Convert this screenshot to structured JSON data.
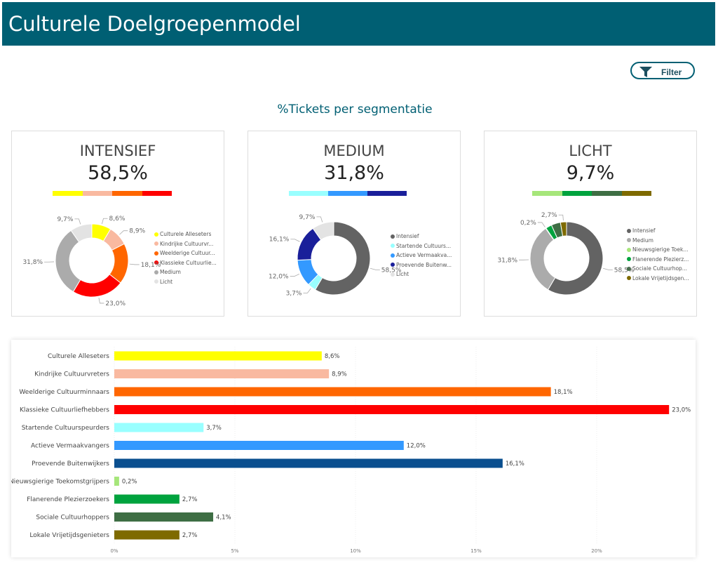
{
  "header": {
    "title": "Culturele Doelgroepenmodel"
  },
  "filter": {
    "label": "Filter",
    "icon": "funnel-icon"
  },
  "subtitle": "%Tickets per segmentatie",
  "cards": [
    {
      "title": "INTENSIEF",
      "value": "58,5%",
      "strip": [
        "#FFFF00",
        "#F9B9A0",
        "#FF6600",
        "#FF0000"
      ],
      "slices": [
        {
          "name": "Culturele Alleseters",
          "legend": "Culturele Alleseters",
          "value": 8.6,
          "color": "#FFFF00",
          "label": "8,6%"
        },
        {
          "name": "Kindrijke Cultuurvreters",
          "legend": "Kindrijke Cultuurvr...",
          "value": 8.9,
          "color": "#F9B9A0",
          "label": "8,9%"
        },
        {
          "name": "Weelderige Cultuurminnaars",
          "legend": "Weelderige Cultuur...",
          "value": 18.1,
          "color": "#FF6600",
          "label": "18,1%"
        },
        {
          "name": "Klassieke Cultuurliefhebbers",
          "legend": "Klassieke Cultuurlie...",
          "value": 23.0,
          "color": "#FF0000",
          "label": "23,0%"
        },
        {
          "name": "Medium",
          "legend": "Medium",
          "value": 31.8,
          "color": "#ABABAB",
          "label": "31,8%"
        },
        {
          "name": "Licht",
          "legend": "Licht",
          "value": 9.7,
          "color": "#E3E3E3",
          "label": "9,7%"
        }
      ]
    },
    {
      "title": "MEDIUM",
      "value": "31,8%",
      "strip": [
        "#99FFFF",
        "#3399FF",
        "#1A1F9A"
      ],
      "slices": [
        {
          "name": "Intensief",
          "legend": "Intensief",
          "value": 58.5,
          "color": "#636363",
          "label": "58,5%"
        },
        {
          "name": "Startende Cultuurspeurders",
          "legend": "Startende Cultuurs...",
          "value": 3.7,
          "color": "#99FFFF",
          "label": "3,7%"
        },
        {
          "name": "Actieve Vermaakvangers",
          "legend": "Actieve Vermaakva...",
          "value": 12.0,
          "color": "#3399FF",
          "label": "12,0%"
        },
        {
          "name": "Proevende Buitenwijkers",
          "legend": "Proevende Buitenw...",
          "value": 16.1,
          "color": "#1A1F9A",
          "label": "16,1%"
        },
        {
          "name": "Licht",
          "legend": "Licht",
          "value": 9.7,
          "color": "#E3E3E3",
          "label": "9,7%"
        }
      ]
    },
    {
      "title": "LICHT",
      "value": "9,7%",
      "strip": [
        "#A6E67A",
        "#00A33E",
        "#3E6E44",
        "#7E6A00"
      ],
      "slices": [
        {
          "name": "Intensief",
          "legend": "Intensief",
          "value": 58.5,
          "color": "#636363",
          "label": "58,5%"
        },
        {
          "name": "Medium",
          "legend": "Medium",
          "value": 31.8,
          "color": "#ABABAB",
          "label": "31,8%"
        },
        {
          "name": "Nieuwsgierige Toekomstgrijpers",
          "legend": "Nieuwsgierige Toek...",
          "value": 0.2,
          "color": "#A6E67A",
          "label": "0,2%"
        },
        {
          "name": "Flanerende Plezierzoekers",
          "legend": "Flanerende Plezierz...",
          "value": 2.7,
          "color": "#00A33E",
          "label": ""
        },
        {
          "name": "Sociale Cultuurhoppers",
          "legend": "Sociale Cultuurhop...",
          "value": 4.1,
          "color": "#3E6E44",
          "label": ""
        },
        {
          "name": "Lokale Vrijetijdsgenieters",
          "legend": "Lokale Vrijetijdsgen...",
          "value": 2.7,
          "color": "#7E6A00",
          "label": "2,7%"
        }
      ]
    }
  ],
  "chart_data": {
    "type": "bar",
    "orientation": "horizontal",
    "categories": [
      "Culturele Alleseters",
      "Kindrijke Cultuurvreters",
      "Weelderige Cultuurminnaars",
      "Klassieke Cultuurliefhebbers",
      "Startende Cultuurspeurders",
      "Actieve Vermaakvangers",
      "Proevende Buitenwijkers",
      "Nieuwsgierige Toekomstgrijpers",
      "Flanerende Plezierzoekers",
      "Sociale Cultuurhoppers",
      "Lokale Vrijetijdsgenieters"
    ],
    "values": [
      8.6,
      8.9,
      18.1,
      23.0,
      3.7,
      12.0,
      16.1,
      0.2,
      2.7,
      4.1,
      2.7
    ],
    "labels": [
      "8,6%",
      "8,9%",
      "18,1%",
      "23,0%",
      "3,7%",
      "12,0%",
      "16,1%",
      "0,2%",
      "2,7%",
      "4,1%",
      "2,7%"
    ],
    "colors": [
      "#FFFF00",
      "#F9B9A0",
      "#FF6600",
      "#FF0000",
      "#99FFFF",
      "#3399FF",
      "#0A4F8F",
      "#A6E67A",
      "#00A33E",
      "#3E6E44",
      "#7E6A00"
    ],
    "xticks": [
      "0%",
      "5%",
      "10%",
      "15%",
      "20%"
    ],
    "xtick_values": [
      0,
      5,
      10,
      15,
      20
    ],
    "xlim": [
      0,
      23.5
    ],
    "grid": true
  }
}
